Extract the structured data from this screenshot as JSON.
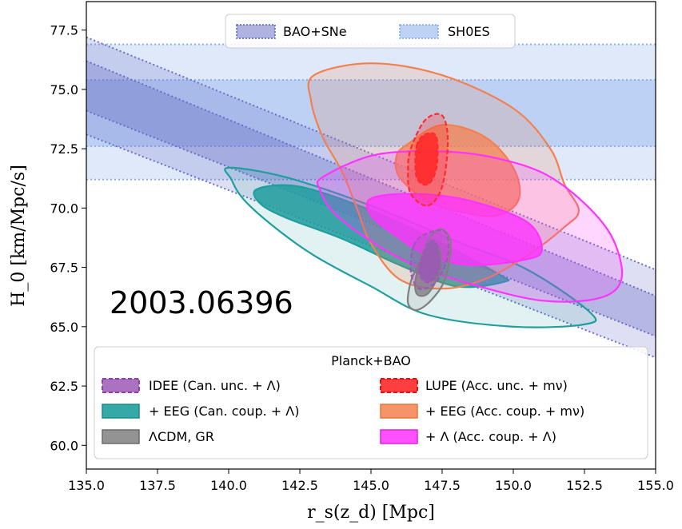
{
  "chart_data": {
    "type": "contour",
    "watermark": "2003.06396",
    "xlabel": "r_s(z_d)  [Mpc]",
    "ylabel": "H_0 [km/Mpc/s]",
    "xlim": [
      135.0,
      155.0
    ],
    "ylim": [
      59.0,
      78.7
    ],
    "xticks": [
      "135.0",
      "137.5",
      "140.0",
      "142.5",
      "145.0",
      "147.5",
      "150.0",
      "152.5",
      "155.0"
    ],
    "yticks": [
      "60.0",
      "62.5",
      "65.0",
      "67.5",
      "70.0",
      "72.5",
      "75.0",
      "77.5"
    ],
    "grid": false,
    "top_legend": {
      "placement": "top-center",
      "entries": [
        {
          "label": "BAO+SNe",
          "color": "#7b7fc9"
        },
        {
          "label": "SH0ES",
          "color": "#a8c4f0"
        }
      ]
    },
    "bottom_legend": {
      "placement": "bottom",
      "title": "Planck+BAO",
      "entries": [
        {
          "label": "IDEE (Can. unc. + Λ)",
          "color": "#9b59b6"
        },
        {
          "label": "LUPE (Acc. unc. + mν)",
          "color": "#ff2a2a"
        },
        {
          "label": "+ EEG (Can. coup. + Λ)",
          "color": "#1f9e9e"
        },
        {
          "label": "+ EEG (Acc. coup. + mν)",
          "color": "#f4804d"
        },
        {
          "label": "ΛCDM, GR",
          "color": "#808080"
        },
        {
          "label": "+ Λ (Acc. coup. + Λ)",
          "color": "#ff33ff"
        }
      ]
    },
    "bands": {
      "sh0es": {
        "outer": [
          71.2,
          76.9
        ],
        "inner": [
          72.6,
          75.4
        ],
        "color": "#6e9be8"
      },
      "bao_sne": {
        "inner_upper": [
          [
            135,
            76.2
          ],
          [
            155,
            66.3
          ]
        ],
        "inner_lower": [
          [
            135,
            74.1
          ],
          [
            155,
            64.6
          ]
        ],
        "outer_upper": [
          [
            135,
            77.2
          ],
          [
            155,
            67.4
          ]
        ],
        "outer_lower": [
          [
            135,
            73.1
          ],
          [
            155,
            63.7
          ]
        ],
        "color": "#5a5fbf"
      }
    },
    "contours": [
      {
        "name": "+ EEG (Can. coup. + Λ) 95%",
        "color": "#1f9e9e",
        "alpha": 0.13,
        "points": [
          [
            140.0,
            71.7
          ],
          [
            142.0,
            71.3
          ],
          [
            145.0,
            70.1
          ],
          [
            148.0,
            68.6
          ],
          [
            150.5,
            67.4
          ],
          [
            152.7,
            65.6
          ],
          [
            152.5,
            65.1
          ],
          [
            150.0,
            65.0
          ],
          [
            147.0,
            65.5
          ],
          [
            145.0,
            66.7
          ],
          [
            143.0,
            68.0
          ],
          [
            141.5,
            69.3
          ],
          [
            140.5,
            70.4
          ],
          [
            140.1,
            71.2
          ]
        ]
      },
      {
        "name": "+ EEG (Can. coup. + Λ) 68%",
        "color": "#1f9e9e",
        "alpha": 0.85,
        "points": [
          [
            141.0,
            70.8
          ],
          [
            142.5,
            70.9
          ],
          [
            145.0,
            69.9
          ],
          [
            147.5,
            68.5
          ],
          [
            149.5,
            67.2
          ],
          [
            149.7,
            66.9
          ],
          [
            148.0,
            66.7
          ],
          [
            146.0,
            67.6
          ],
          [
            144.0,
            68.7
          ],
          [
            142.0,
            69.6
          ],
          [
            141.1,
            70.2
          ]
        ]
      },
      {
        "name": "+ EEG (Acc. coup. + mν) 95%",
        "color": "#f4804d",
        "alpha": 0.18,
        "points": [
          [
            143.0,
            75.6
          ],
          [
            145.0,
            76.1
          ],
          [
            147.5,
            75.6
          ],
          [
            150.0,
            74.2
          ],
          [
            151.3,
            72.5
          ],
          [
            151.8,
            71.0
          ],
          [
            152.3,
            69.9
          ],
          [
            151.8,
            69.2
          ],
          [
            150.5,
            68.0
          ],
          [
            149.0,
            67.0
          ],
          [
            147.5,
            66.6
          ],
          [
            146.0,
            67.0
          ],
          [
            145.0,
            68.5
          ],
          [
            144.5,
            70.0
          ],
          [
            144.0,
            71.5
          ],
          [
            143.3,
            73.0
          ],
          [
            142.9,
            74.5
          ]
        ]
      },
      {
        "name": "+ EEG (Acc. coup. + mν) 68%",
        "color": "#f4804d",
        "alpha": 0.75,
        "points": [
          [
            146.3,
            72.7
          ],
          [
            147.5,
            73.5
          ],
          [
            149.0,
            73.0
          ],
          [
            150.0,
            71.7
          ],
          [
            150.2,
            70.4
          ],
          [
            149.5,
            69.7
          ],
          [
            148.3,
            69.8
          ],
          [
            147.0,
            70.3
          ],
          [
            146.0,
            71.3
          ],
          [
            145.9,
            72.2
          ]
        ]
      },
      {
        "name": "+ Λ (Acc. coup. + Λ) 95%",
        "color": "#ff33ff",
        "alpha": 0.2,
        "points": [
          [
            143.3,
            71.3
          ],
          [
            145.0,
            72.2
          ],
          [
            147.0,
            72.4
          ],
          [
            149.0,
            72.2
          ],
          [
            151.0,
            71.5
          ],
          [
            152.5,
            70.2
          ],
          [
            153.5,
            68.7
          ],
          [
            153.8,
            67.0
          ],
          [
            153.0,
            66.2
          ],
          [
            151.0,
            66.1
          ],
          [
            148.5,
            66.8
          ],
          [
            146.5,
            67.6
          ],
          [
            145.0,
            68.6
          ],
          [
            143.7,
            69.8
          ],
          [
            143.2,
            70.8
          ]
        ]
      },
      {
        "name": "+ Λ (Acc. coup. + Λ) 68%",
        "color": "#ff33ff",
        "alpha": 0.8,
        "points": [
          [
            145.0,
            70.4
          ],
          [
            146.5,
            70.6
          ],
          [
            148.5,
            70.3
          ],
          [
            150.5,
            69.4
          ],
          [
            151.0,
            68.2
          ],
          [
            150.3,
            67.8
          ],
          [
            148.5,
            67.6
          ],
          [
            147.0,
            68.0
          ],
          [
            145.8,
            68.9
          ],
          [
            145.0,
            69.7
          ]
        ]
      },
      {
        "name": "ΛCDM, GR 95%",
        "color": "#808080",
        "alpha": 0.15,
        "points": [
          [
            146.7,
            67.7
          ],
          [
            147.1,
            68.8
          ],
          [
            147.5,
            69.1
          ],
          [
            147.8,
            68.5
          ],
          [
            147.6,
            67.0
          ],
          [
            147.1,
            66.1
          ],
          [
            146.6,
            65.7
          ],
          [
            146.3,
            66.0
          ],
          [
            146.4,
            66.9
          ]
        ]
      },
      {
        "name": "ΛCDM, GR 68%",
        "color": "#808080",
        "alpha": 0.8,
        "points": [
          [
            146.6,
            67.2
          ],
          [
            147.0,
            68.4
          ],
          [
            147.4,
            68.3
          ],
          [
            147.4,
            67.3
          ],
          [
            147.0,
            66.4
          ],
          [
            146.6,
            66.4
          ]
        ]
      },
      {
        "name": "IDEE (Can. unc. + Λ) 95%",
        "color": "#9b59b6",
        "alpha": 0.25,
        "points": [
          [
            146.5,
            68.4
          ],
          [
            146.9,
            68.9
          ],
          [
            147.6,
            69.0
          ],
          [
            147.7,
            68.0
          ],
          [
            147.3,
            66.9
          ],
          [
            146.7,
            66.6
          ],
          [
            146.4,
            67.3
          ]
        ]
      },
      {
        "name": "IDEE (Can. unc. + Λ) 68%",
        "color": "#9b59b6",
        "alpha": 0.85,
        "points": [
          [
            146.7,
            67.5
          ],
          [
            147.0,
            68.5
          ],
          [
            147.3,
            68.5
          ],
          [
            147.4,
            67.5
          ],
          [
            147.1,
            66.9
          ],
          [
            146.8,
            67.0
          ]
        ]
      },
      {
        "name": "LUPE (Acc. unc. + mν) 95%",
        "color": "#ff2a2a",
        "alpha": 0.25,
        "points": [
          [
            146.4,
            72.5
          ],
          [
            146.9,
            73.7
          ],
          [
            147.5,
            73.9
          ],
          [
            147.7,
            72.8
          ],
          [
            147.5,
            70.9
          ],
          [
            147.0,
            70.1
          ],
          [
            146.4,
            70.6
          ],
          [
            146.3,
            71.6
          ]
        ]
      },
      {
        "name": "LUPE (Acc. unc. + mν) 68%",
        "color": "#ff2a2a",
        "alpha": 0.9,
        "points": [
          [
            146.6,
            72.6
          ],
          [
            146.9,
            73.1
          ],
          [
            147.3,
            73.0
          ],
          [
            147.3,
            71.7
          ],
          [
            147.0,
            71.0
          ],
          [
            146.6,
            71.3
          ]
        ]
      }
    ]
  }
}
